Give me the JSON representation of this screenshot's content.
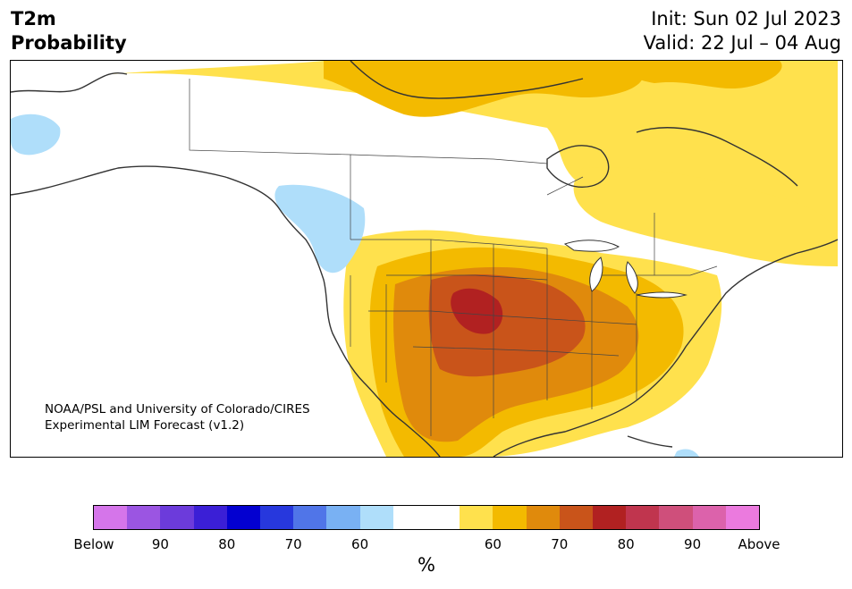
{
  "title": {
    "left_line1": "T2m",
    "left_line2": "Probability",
    "right_line1": "Init: Sun 02 Jul 2023",
    "right_line2": "Valid: 22 Jul – 04 Aug"
  },
  "credit": {
    "line1": "NOAA/PSL and University of Colorado/CIRES",
    "line2": "Experimental LIM Forecast (v1.2)"
  },
  "colorbar": {
    "colors": [
      "#d575ea",
      "#9b55e2",
      "#6c3bdb",
      "#3b1fd6",
      "#0300d0",
      "#2738dd",
      "#5075e8",
      "#79b1f3",
      "#afdefa",
      "#ffffff",
      "#ffffff",
      "#ffe14d",
      "#f3ba00",
      "#e08a0c",
      "#c9541a",
      "#b12121",
      "#c0354e",
      "#cf4f7b",
      "#dc62ab",
      "#eb7ade"
    ],
    "tick_labels": [
      "Below",
      "90",
      "80",
      "70",
      "60",
      "60",
      "70",
      "80",
      "90",
      "Above"
    ],
    "unit": "%"
  },
  "map": {
    "region": "North America",
    "projection": "Lambert conformal",
    "variable": "2m temperature probability",
    "fill_colors": {
      "below_60": "#afdefa",
      "above_60": "#ffe14d",
      "above_65": "#f3ba00",
      "above_70": "#e08a0c",
      "above_75": "#c9541a",
      "above_80": "#b12121"
    }
  }
}
